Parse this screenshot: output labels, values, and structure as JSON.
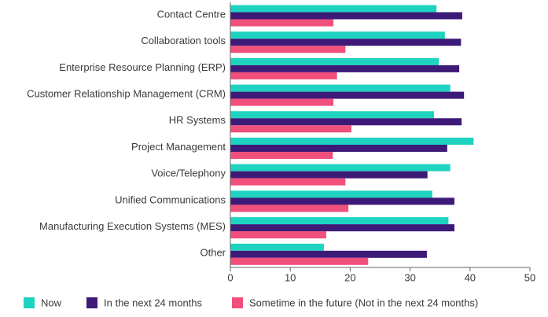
{
  "chart_data": {
    "type": "bar",
    "orientation": "horizontal",
    "categories": [
      "Contact Centre",
      "Collaboration tools",
      "Enterprise Resource Planning (ERP)",
      "Customer Relationship Management (CRM)",
      "HR Systems",
      "Project Management",
      "Voice/Telephony",
      "Unified Communications",
      "Manufacturing Execution Systems (MES)",
      "Other"
    ],
    "series": [
      {
        "name": "Now",
        "color": "#1ed3bf",
        "values": [
          34.4,
          35.8,
          34.8,
          36.7,
          34.0,
          40.6,
          36.7,
          33.7,
          36.4,
          15.6
        ]
      },
      {
        "name": "In the next 24 months",
        "color": "#3e1a78",
        "values": [
          38.7,
          38.5,
          38.2,
          39.0,
          38.6,
          36.2,
          32.9,
          37.4,
          37.4,
          32.8
        ]
      },
      {
        "name": "Sometime in the future (Not in the next 24 months)",
        "color": "#f0507b",
        "values": [
          17.2,
          19.2,
          17.8,
          17.2,
          20.2,
          17.1,
          19.2,
          19.7,
          16.0,
          23.0
        ]
      }
    ],
    "xlim": [
      0,
      50
    ],
    "xticks": [
      0,
      10,
      20,
      30,
      40,
      50
    ]
  }
}
